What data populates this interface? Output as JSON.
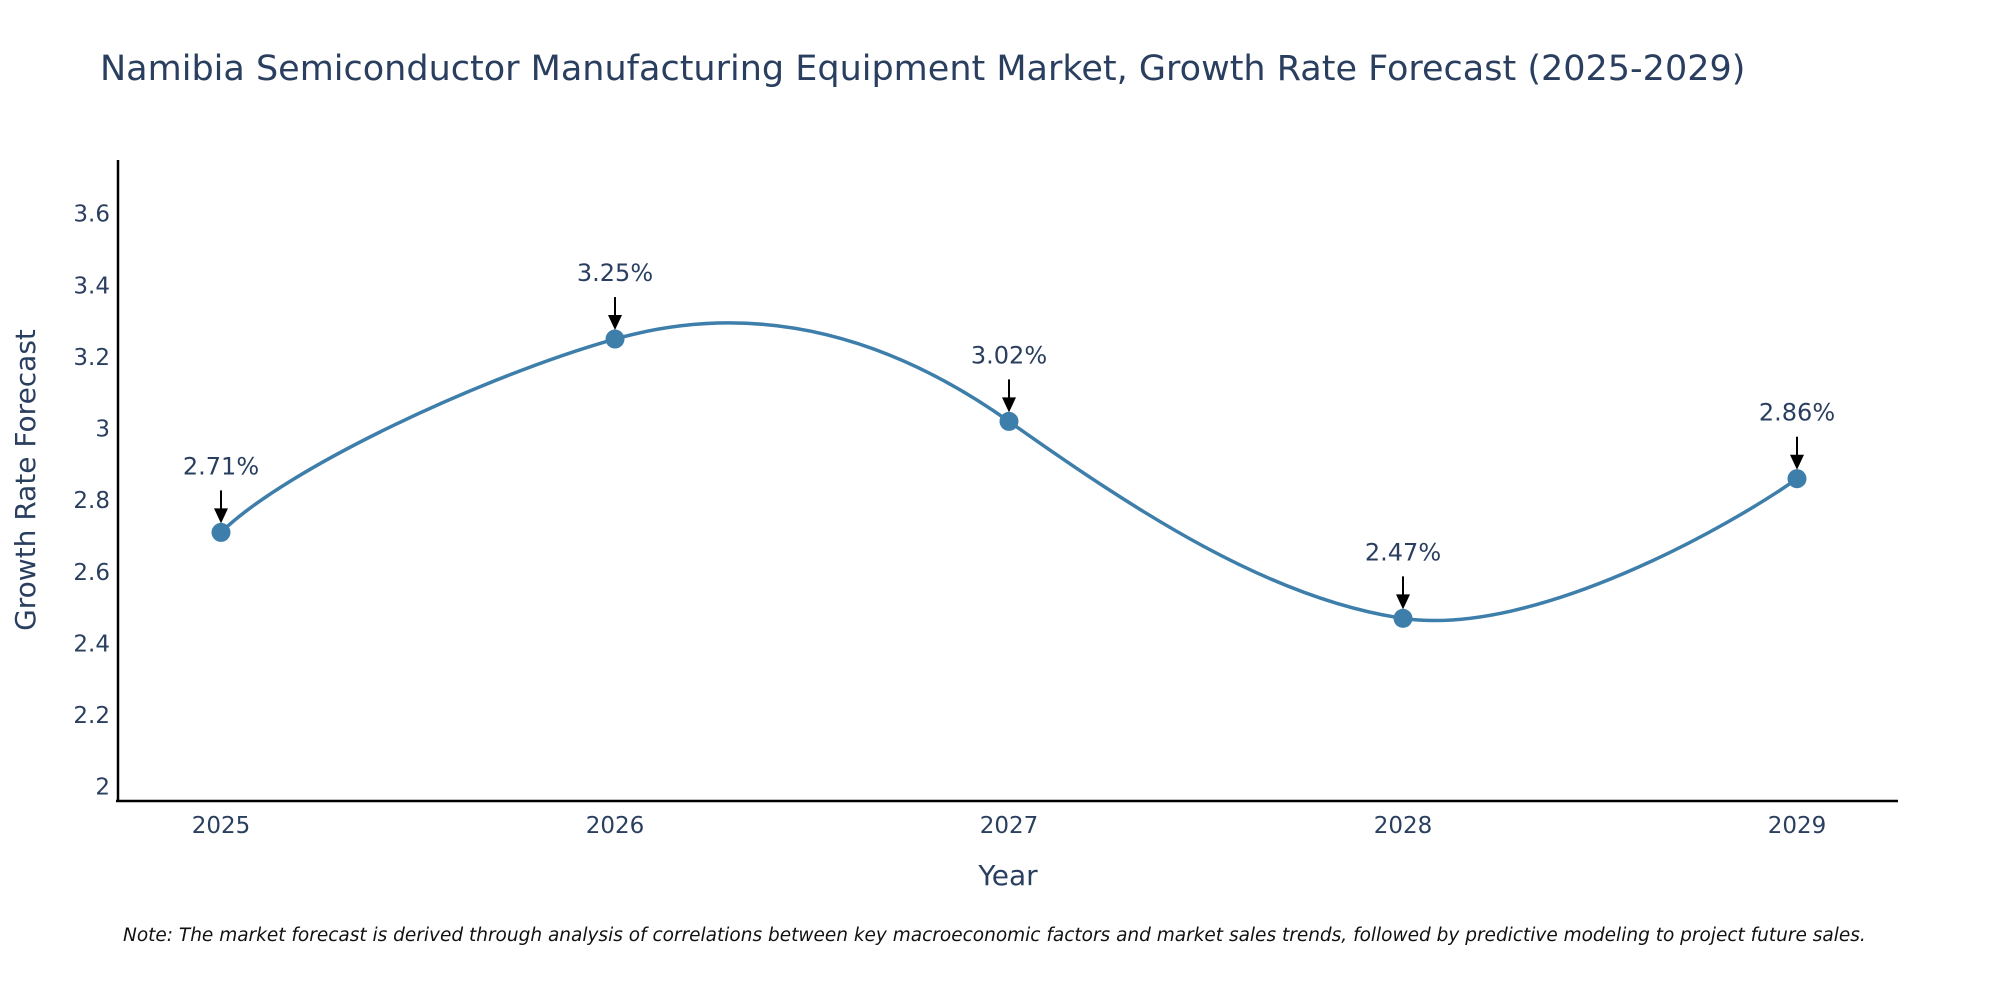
{
  "chart_data": {
    "type": "line",
    "title": "Namibia Semiconductor Manufacturing Equipment Market, Growth Rate Forecast (2025-2029)",
    "xlabel": "Year",
    "ylabel": "Growth Rate Forecast",
    "x": [
      "2025",
      "2026",
      "2027",
      "2028",
      "2029"
    ],
    "series": [
      {
        "name": "Growth Rate Forecast",
        "values": [
          2.71,
          3.25,
          3.02,
          2.47,
          2.86
        ],
        "color": "#3d7eaa"
      }
    ],
    "data_labels": [
      "2.71%",
      "3.25%",
      "3.02%",
      "2.47%",
      "2.86%"
    ],
    "ylim": [
      1.96,
      3.75
    ],
    "yticks": [
      2,
      2.2,
      2.4,
      2.6,
      2.8,
      3,
      3.2,
      3.4,
      3.6
    ],
    "ytick_labels": [
      "2",
      "2.2",
      "2.4",
      "2.6",
      "2.8",
      "3",
      "3.2",
      "3.4",
      "3.6"
    ],
    "grid": false,
    "line_shape": "spline",
    "note": "Note: The market forecast is derived through analysis of correlations between key macroeconomic factors and market sales trends, followed by predictive modeling to project future sales."
  },
  "colors": {
    "text": "#2a3f5f",
    "axis": "#000000",
    "line": "#3d7eaa",
    "arrow": "#000000"
  }
}
